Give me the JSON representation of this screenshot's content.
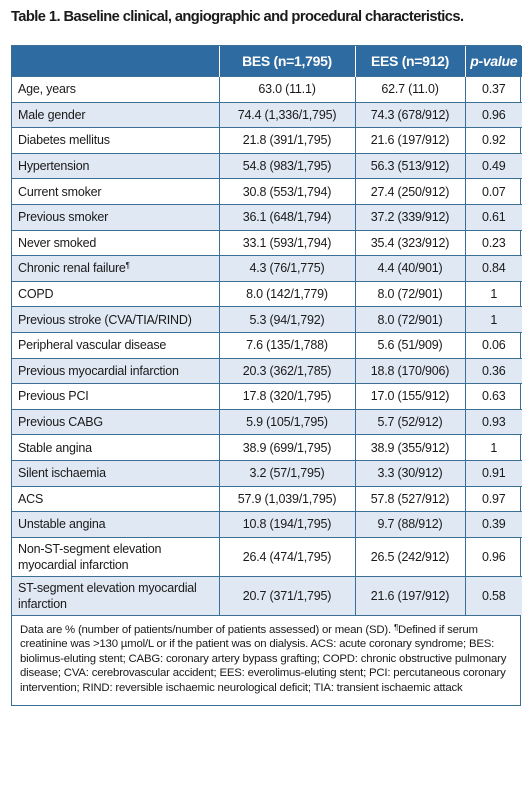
{
  "title": "Table 1. Baseline clinical, angiographic and procedural characteristics.",
  "headers": {
    "label": "",
    "bes": "BES (n=1,795)",
    "ees": "EES (n=912)",
    "pvalue": "p-value"
  },
  "rows": [
    {
      "label": "Age, years",
      "bes": "63.0 (11.1)",
      "ees": "62.7 (11.0)",
      "p": "0.37"
    },
    {
      "label": "Male gender",
      "bes": "74.4 (1,336/1,795)",
      "ees": "74.3 (678/912)",
      "p": "0.96"
    },
    {
      "label": "Diabetes mellitus",
      "bes": "21.8 (391/1,795)",
      "ees": "21.6 (197/912)",
      "p": "0.92"
    },
    {
      "label": "Hypertension",
      "bes": "54.8 (983/1,795)",
      "ees": "56.3 (513/912)",
      "p": "0.49"
    },
    {
      "label": "Current smoker",
      "bes": "30.8 (553/1,794)",
      "ees": "27.4 (250/912)",
      "p": "0.07"
    },
    {
      "label": "Previous smoker",
      "bes": "36.1 (648/1,794)",
      "ees": "37.2 (339/912)",
      "p": "0.61"
    },
    {
      "label": "Never smoked",
      "bes": "33.1 (593/1,794)",
      "ees": "35.4 (323/912)",
      "p": "0.23"
    },
    {
      "label": "Chronic renal failure",
      "sup": "¶",
      "bes": "4.3 (76/1,775)",
      "ees": "4.4 (40/901)",
      "p": "0.84"
    },
    {
      "label": "COPD",
      "bes": "8.0 (142/1,779)",
      "ees": "8.0 (72/901)",
      "p": "1"
    },
    {
      "label": "Previous stroke (CVA/TIA/RIND)",
      "bes": "5.3 (94/1,792)",
      "ees": "8.0 (72/901)",
      "p": "1"
    },
    {
      "label": "Peripheral vascular disease",
      "bes": "7.6 (135/1,788)",
      "ees": "5.6 (51/909)",
      "p": "0.06"
    },
    {
      "label": "Previous myocardial infarction",
      "bes": "20.3 (362/1,785)",
      "ees": "18.8 (170/906)",
      "p": "0.36"
    },
    {
      "label": "Previous PCI",
      "bes": "17.8 (320/1,795)",
      "ees": "17.0 (155/912)",
      "p": "0.63"
    },
    {
      "label": "Previous CABG",
      "bes": "5.9 (105/1,795)",
      "ees": "5.7 (52/912)",
      "p": "0.93"
    },
    {
      "label": "Stable angina",
      "bes": "38.9 (699/1,795)",
      "ees": "38.9 (355/912)",
      "p": "1"
    },
    {
      "label": "Silent ischaemia",
      "bes": "3.2 (57/1,795)",
      "ees": "3.3 (30/912)",
      "p": "0.91"
    },
    {
      "label": "ACS",
      "bes": "57.9 (1,039/1,795)",
      "ees": "57.8 (527/912)",
      "p": "0.97"
    },
    {
      "label": "Unstable angina",
      "bes": "10.8 (194/1,795)",
      "ees": "9.7 (88/912)",
      "p": "0.39"
    },
    {
      "label": "Non-ST-segment elevation myocardial infarction",
      "bes": "26.4 (474/1,795)",
      "ees": "26.5 (242/912)",
      "p": "0.96"
    },
    {
      "label": "ST-segment elevation myocardial infarction",
      "bes": "20.7 (371/1,795)",
      "ees": "21.6 (197/912)",
      "p": "0.58"
    }
  ],
  "footnote": {
    "intro": "Data are % (number of patients/number of patients assessed) or mean (SD). ",
    "mark": "¶",
    "text": "Defined if serum creatinine was >130 µmol/L or if the patient was on dialysis. ACS: acute coronary syndrome; BES: biolimus-eluting stent; CABG: coronary artery bypass grafting; COPD: chronic obstructive pulmonary disease; CVA: cerebrovascular accident; EES: everolimus-eluting stent; PCI: percutaneous coronary intervention; RIND: reversible ischaemic neurological deficit; TIA: transient ischaemic attack"
  }
}
